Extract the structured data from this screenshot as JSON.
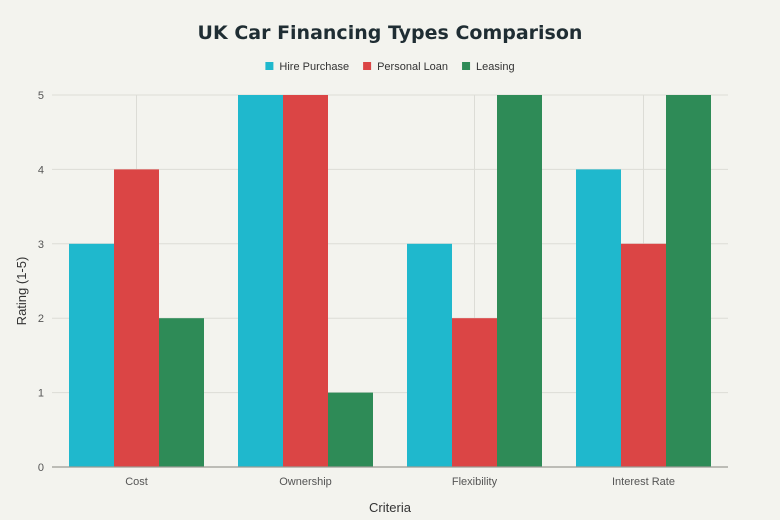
{
  "chart_data": {
    "type": "bar",
    "title": "UK Car Financing Types Comparison",
    "categories": [
      "Cost",
      "Ownership",
      "Flexibility",
      "Interest Rate"
    ],
    "series": [
      {
        "name": "Hire Purchase",
        "values": [
          3,
          5,
          3,
          4
        ],
        "color": "#1fb8cd"
      },
      {
        "name": "Personal Loan",
        "values": [
          4,
          5,
          2,
          3
        ],
        "color": "#db4545"
      },
      {
        "name": "Leasing",
        "values": [
          2,
          1,
          5,
          5
        ],
        "color": "#2e8b57"
      }
    ],
    "xlabel": "Criteria",
    "ylabel": "Rating (1-5)",
    "ylim": [
      0,
      5
    ],
    "yticks": [
      "0",
      "1",
      "2",
      "3",
      "4",
      "5"
    ],
    "grid": true,
    "legend_position": "top-center"
  }
}
